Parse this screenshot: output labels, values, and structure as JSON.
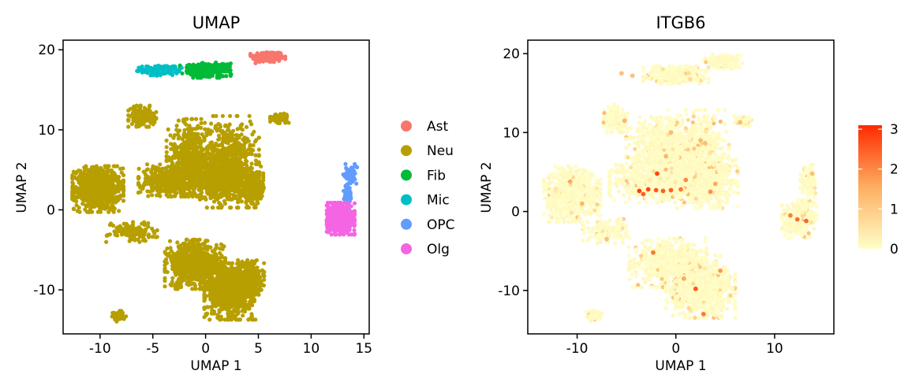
{
  "chart_data": [
    {
      "type": "scatter",
      "title": "UMAP",
      "xlabel": "UMAP 1",
      "ylabel": "UMAP 2",
      "xlim": [
        -13.5,
        15.5
      ],
      "ylim": [
        -15.5,
        21.2
      ],
      "xticks": [
        -10,
        -5,
        0,
        5,
        10,
        15
      ],
      "xtick_labels": [
        "-10",
        "-5",
        "0",
        "5",
        "10",
        "15"
      ],
      "yticks": [
        20,
        10,
        0,
        -10
      ],
      "ytick_labels": [
        "20",
        "10",
        "0",
        "-10"
      ],
      "grid": false,
      "legend": "right",
      "legend_entries": [
        {
          "label": "Ast",
          "color": "#F8766D"
        },
        {
          "label": "Neu",
          "color": "#B79F00"
        },
        {
          "label": "Fib",
          "color": "#00BA38"
        },
        {
          "label": "Mic",
          "color": "#00BFC4"
        },
        {
          "label": "OPC",
          "color": "#619CFF"
        },
        {
          "label": "Olg",
          "color": "#F564E3"
        }
      ],
      "clusters": [
        {
          "group": "Ast",
          "cx": 5.9,
          "cy": 19.1,
          "sx": 0.75,
          "sy": 0.35,
          "n": 220
        },
        {
          "group": "Neu",
          "cx": -10.2,
          "cy": 2.6,
          "sx": 1.1,
          "sy": 1.3,
          "n": 800
        },
        {
          "group": "Neu",
          "cx": -1.5,
          "cy": 6.5,
          "sx": 1.0,
          "sy": 2.2,
          "n": 500
        },
        {
          "group": "Neu",
          "cx": 2.2,
          "cy": 6.0,
          "sx": 1.3,
          "sy": 2.6,
          "n": 600
        },
        {
          "group": "Neu",
          "cx": -3.5,
          "cy": 3.7,
          "sx": 1.3,
          "sy": 0.9,
          "n": 400
        },
        {
          "group": "Neu",
          "cx": 1.5,
          "cy": 3.5,
          "sx": 1.8,
          "sy": 1.0,
          "n": 500
        },
        {
          "group": "Neu",
          "cx": 4.5,
          "cy": 2.5,
          "sx": 0.6,
          "sy": 1.0,
          "n": 150
        },
        {
          "group": "Neu",
          "cx": -6.0,
          "cy": 11.7,
          "sx": 0.6,
          "sy": 0.6,
          "n": 150
        },
        {
          "group": "Neu",
          "cx": 7.0,
          "cy": 11.5,
          "sx": 0.4,
          "sy": 0.3,
          "n": 80
        },
        {
          "group": "Neu",
          "cx": -7.0,
          "cy": -2.7,
          "sx": 1.1,
          "sy": 0.6,
          "n": 120
        },
        {
          "group": "Neu",
          "cx": -1.0,
          "cy": -6.8,
          "sx": 1.3,
          "sy": 1.4,
          "n": 700
        },
        {
          "group": "Neu",
          "cx": 2.3,
          "cy": -10.2,
          "sx": 1.1,
          "sy": 1.6,
          "n": 800
        },
        {
          "group": "Neu",
          "cx": 4.0,
          "cy": -8.5,
          "sx": 0.7,
          "sy": 1.0,
          "n": 300
        },
        {
          "group": "Neu",
          "cx": -8.2,
          "cy": -13.3,
          "sx": 0.3,
          "sy": 0.3,
          "n": 60
        },
        {
          "group": "Fib",
          "cx": 0.0,
          "cy": 17.5,
          "sx": 1.1,
          "sy": 0.45,
          "n": 300
        },
        {
          "group": "Mic",
          "cx": -4.3,
          "cy": 17.4,
          "sx": 1.0,
          "sy": 0.3,
          "n": 160
        },
        {
          "group": "OPC",
          "cx": 13.7,
          "cy": 4.4,
          "sx": 0.3,
          "sy": 0.6,
          "n": 60
        },
        {
          "group": "OPC",
          "cx": 13.5,
          "cy": 2.0,
          "sx": 0.2,
          "sy": 0.9,
          "n": 40
        },
        {
          "group": "Olg",
          "cx": 12.8,
          "cy": -1.1,
          "sx": 0.6,
          "sy": 0.9,
          "n": 600
        }
      ]
    },
    {
      "type": "scatter",
      "title": "ITGB6",
      "xlabel": "UMAP 1",
      "ylabel": "UMAP 2",
      "xlim": [
        -15.0,
        16.0
      ],
      "ylim": [
        -15.5,
        21.7
      ],
      "xticks": [
        -10,
        0,
        10
      ],
      "xtick_labels": [
        "-10",
        "0",
        "10"
      ],
      "yticks": [
        20,
        10,
        0,
        -10
      ],
      "ytick_labels": [
        "20",
        "10",
        "0",
        "-10"
      ],
      "grid": false,
      "legend": "right",
      "colorbar": {
        "min": 0,
        "max": 3.1,
        "ticks": [
          0,
          1,
          2,
          3
        ],
        "tick_labels": [
          "0",
          "1",
          "2",
          "3"
        ],
        "low_color": "#FFFFC8",
        "mid_color": "#FDAE61",
        "high_color": "#FF2A00"
      },
      "clusters": [
        {
          "cx": 4.8,
          "cy": 19.0,
          "sx": 0.9,
          "sy": 0.4,
          "n": 160
        },
        {
          "cx": 0.0,
          "cy": 17.3,
          "sx": 1.5,
          "sy": 0.5,
          "n": 260
        },
        {
          "cx": -10.5,
          "cy": 2.2,
          "sx": 1.3,
          "sy": 1.6,
          "n": 700
        },
        {
          "cx": -1.5,
          "cy": 8.0,
          "sx": 1.6,
          "sy": 1.8,
          "n": 500
        },
        {
          "cx": 2.3,
          "cy": 8.0,
          "sx": 1.4,
          "sy": 2.2,
          "n": 500
        },
        {
          "cx": -1.0,
          "cy": 4.0,
          "sx": 2.6,
          "sy": 1.3,
          "n": 800
        },
        {
          "cx": 3.2,
          "cy": 3.5,
          "sx": 1.4,
          "sy": 1.4,
          "n": 400
        },
        {
          "cx": -6.0,
          "cy": 11.8,
          "sx": 0.6,
          "sy": 0.8,
          "n": 120
        },
        {
          "cx": 6.8,
          "cy": 11.5,
          "sx": 0.4,
          "sy": 0.3,
          "n": 60
        },
        {
          "cx": -7.0,
          "cy": -2.5,
          "sx": 1.1,
          "sy": 0.7,
          "n": 120
        },
        {
          "cx": -0.8,
          "cy": -6.5,
          "sx": 1.8,
          "sy": 1.4,
          "n": 600
        },
        {
          "cx": 2.5,
          "cy": -9.5,
          "sx": 1.6,
          "sy": 1.8,
          "n": 800
        },
        {
          "cx": -8.3,
          "cy": -13.2,
          "sx": 0.4,
          "sy": 0.3,
          "n": 50
        },
        {
          "cx": 12.5,
          "cy": -1.0,
          "sx": 0.8,
          "sy": 1.1,
          "n": 300
        },
        {
          "cx": 13.5,
          "cy": 3.7,
          "sx": 0.4,
          "sy": 1.0,
          "n": 80
        }
      ],
      "highlights": [
        {
          "x": -5.5,
          "y": 17.5,
          "v": 1.2
        },
        {
          "x": -4.4,
          "y": 17.2,
          "v": 1.2
        },
        {
          "x": -5.2,
          "y": 11.5,
          "v": 1.4
        },
        {
          "x": 6.5,
          "y": 11.3,
          "v": 1.3
        },
        {
          "x": -10.7,
          "y": 3.8,
          "v": 1.6
        },
        {
          "x": -3.7,
          "y": 2.6,
          "v": 2.9
        },
        {
          "x": -2.8,
          "y": 2.8,
          "v": 2.8
        },
        {
          "x": -2.0,
          "y": 2.7,
          "v": 2.6
        },
        {
          "x": -1.3,
          "y": 2.6,
          "v": 2.5
        },
        {
          "x": -0.5,
          "y": 2.7,
          "v": 2.5
        },
        {
          "x": 0.5,
          "y": 2.8,
          "v": 2.2
        },
        {
          "x": -1.9,
          "y": 4.8,
          "v": 2.8
        },
        {
          "x": 1.0,
          "y": 4.0,
          "v": 2.0
        },
        {
          "x": 3.5,
          "y": 2.5,
          "v": 1.9
        },
        {
          "x": 4.0,
          "y": 3.5,
          "v": 1.6
        },
        {
          "x": -3.3,
          "y": 2.2,
          "v": 2.5
        },
        {
          "x": 11.6,
          "y": -0.5,
          "v": 2.1
        },
        {
          "x": 12.3,
          "y": -1.0,
          "v": 2.3
        },
        {
          "x": 13.2,
          "y": -1.2,
          "v": 2.4
        },
        {
          "x": -2.3,
          "y": -5.2,
          "v": 2.2
        },
        {
          "x": 2.0,
          "y": -9.8,
          "v": 2.6
        },
        {
          "x": 2.8,
          "y": -13.0,
          "v": 2.2
        },
        {
          "x": 4.5,
          "y": -7.5,
          "v": 1.8
        },
        {
          "x": 0.8,
          "y": -8.5,
          "v": 1.6
        },
        {
          "x": -0.5,
          "y": 10.0,
          "v": 1.3
        },
        {
          "x": 2.5,
          "y": 9.0,
          "v": 1.3
        },
        {
          "x": -1.0,
          "y": 7.0,
          "v": 1.4
        },
        {
          "x": -9.5,
          "y": 1.0,
          "v": 1.4
        },
        {
          "x": -7.0,
          "y": -3.5,
          "v": 1.2
        },
        {
          "x": 13.8,
          "y": 4.8,
          "v": 1.2
        }
      ]
    }
  ]
}
